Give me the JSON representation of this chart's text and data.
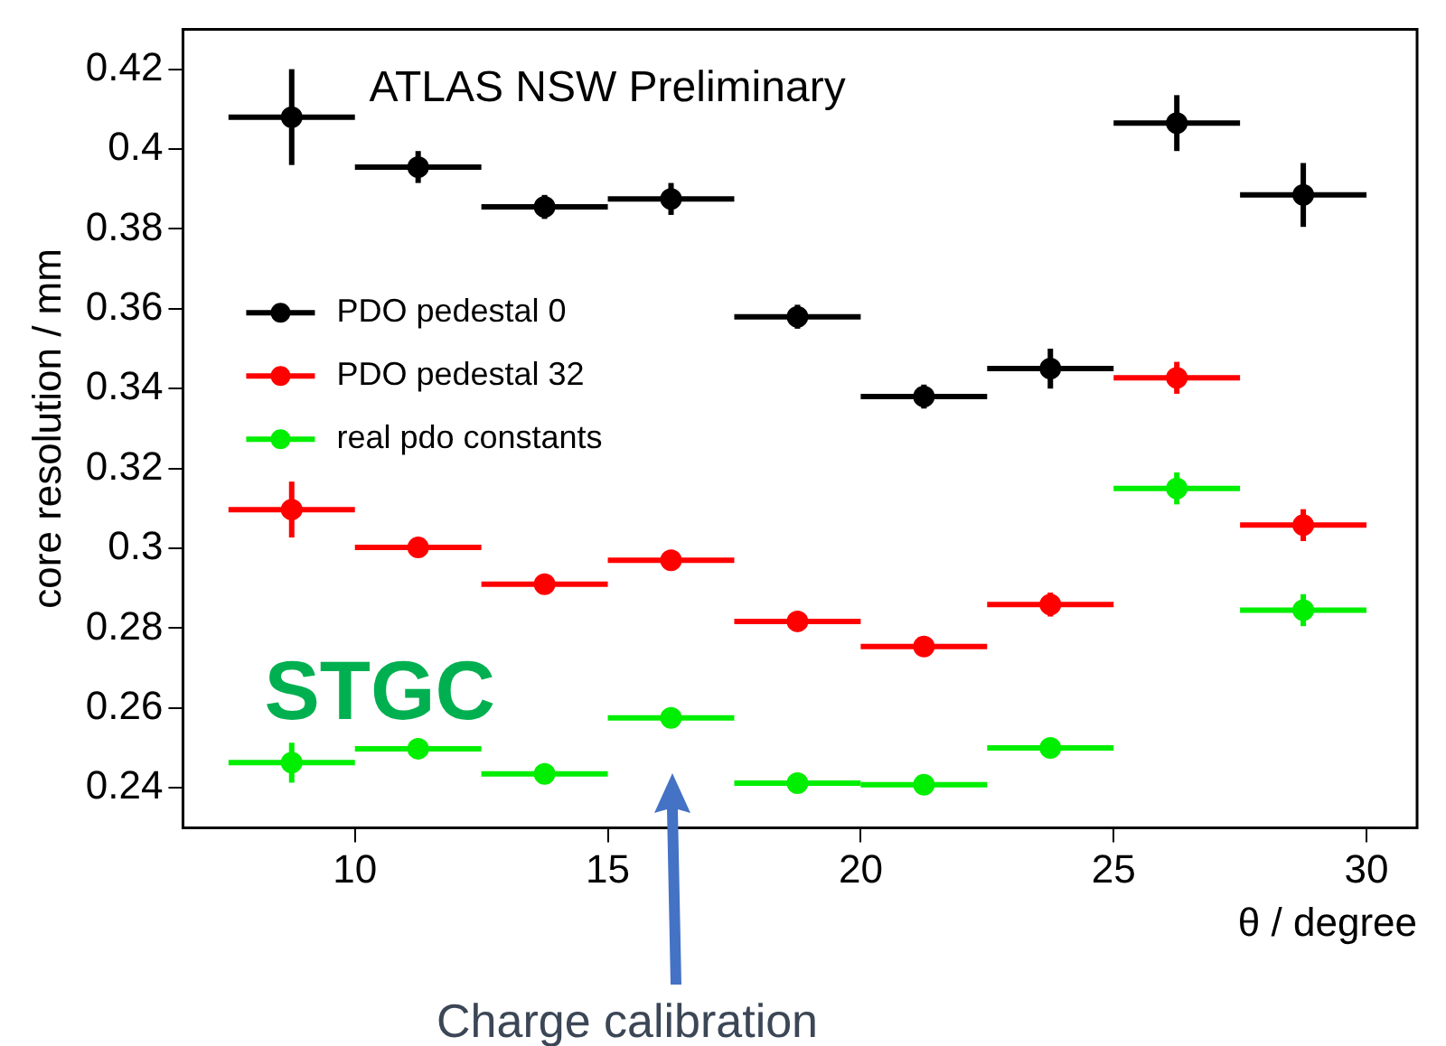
{
  "chart_data": {
    "type": "scatter",
    "xlabel": "θ / degree",
    "ylabel": "core resolution / mm",
    "xlim": [
      6.6,
      31
    ],
    "ylim": [
      0.23,
      0.43
    ],
    "xticks": [
      10,
      15,
      20,
      25,
      30
    ],
    "yticks": [
      0.24,
      0.26,
      0.28,
      0.3,
      0.32,
      0.34,
      0.36,
      0.38,
      0.4,
      0.42
    ],
    "grid": false,
    "legend": "left",
    "marker": "circle",
    "x": [
      8.75,
      11.25,
      13.75,
      16.25,
      18.75,
      21.25,
      23.75,
      26.25,
      28.75
    ],
    "series": [
      {
        "name": "PDO pedestal 0",
        "color": "#000000",
        "values": [
          0.408,
          0.3955,
          0.3855,
          0.3875,
          0.358,
          0.338,
          0.345,
          0.4065,
          0.3885
        ],
        "errors": [
          0.012,
          0.004,
          0.003,
          0.004,
          0.003,
          0.003,
          0.005,
          0.007,
          0.008
        ],
        "xerrors": [
          1.25,
          1.25,
          1.25,
          1.25,
          1.25,
          1.25,
          1.25,
          1.25,
          1.25
        ]
      },
      {
        "name": "PDO pedestal 32",
        "color": "#ff0000",
        "values": [
          0.3097,
          0.3002,
          0.291,
          0.297,
          0.2817,
          0.2754,
          0.2859,
          0.3427,
          0.3058
        ],
        "errors": [
          0.007,
          0.002,
          0.001,
          0.002,
          0.001,
          0.001,
          0.003,
          0.004,
          0.004
        ],
        "xerrors": [
          1.25,
          1.25,
          1.25,
          1.25,
          1.25,
          1.25,
          1.25,
          1.25,
          1.25
        ]
      },
      {
        "name": "real pdo constants",
        "color": "#00ee00",
        "values": [
          0.2463,
          0.2498,
          0.2435,
          0.2575,
          0.2412,
          0.2408,
          0.25,
          0.315,
          0.2845
        ],
        "errors": [
          0.005,
          0.001,
          0.001,
          0.001,
          0.001,
          0.001,
          0.001,
          0.004,
          0.004
        ],
        "xerrors": [
          1.25,
          1.25,
          1.25,
          1.25,
          1.25,
          1.25,
          1.25,
          1.25,
          1.25
        ]
      }
    ],
    "annotations": [
      "ATLAS NSW Preliminary",
      "STGC",
      "Charge calibration"
    ]
  }
}
